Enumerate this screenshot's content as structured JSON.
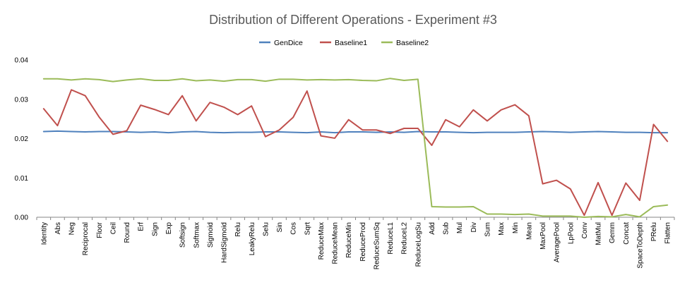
{
  "chart_data": {
    "type": "line",
    "title": "Distribution of Different Operations - Experiment #3",
    "xlabel": "",
    "ylabel": "",
    "ylim": [
      0,
      0.04
    ],
    "yticks": [
      "0.00",
      "0.01",
      "0.02",
      "0.03",
      "0.04"
    ],
    "grid": false,
    "legend_position": "top",
    "categories": [
      "Identity",
      "Abs",
      "Neg",
      "Reciprocal",
      "Floor",
      "Ceil",
      "Round",
      "Erf",
      "Sign",
      "Exp",
      "Softsign",
      "Softmax",
      "Sigmoid",
      "HardSigmoid",
      "Relu",
      "LeakyRelu",
      "Selu",
      "Sin",
      "Cos",
      "Sqrt",
      "ReduceMax",
      "ReduceMean",
      "ReduceMin",
      "ReduceProd",
      "ReduceSumSq",
      "ReduceL1",
      "ReduceL2",
      "ReduceLogSu",
      "Add",
      "Sub",
      "Mul",
      "Div",
      "Sum",
      "Max",
      "Min",
      "Mean",
      "MaxPool",
      "AveragePool",
      "LpPool",
      "Conv",
      "MatMul",
      "Gemm",
      "Concat",
      "SpaceToDepth",
      "PRelu",
      "Flatten"
    ],
    "series": [
      {
        "name": "GenDice",
        "color": "#4F81BD",
        "values": [
          0.0218,
          0.0219,
          0.0218,
          0.0217,
          0.0218,
          0.0218,
          0.0217,
          0.0216,
          0.0217,
          0.0215,
          0.0217,
          0.0218,
          0.0216,
          0.0215,
          0.0216,
          0.0216,
          0.0217,
          0.0217,
          0.0216,
          0.0215,
          0.0217,
          0.0215,
          0.0217,
          0.0217,
          0.0216,
          0.0217,
          0.0216,
          0.0218,
          0.0217,
          0.0217,
          0.0216,
          0.0215,
          0.0216,
          0.0216,
          0.0216,
          0.0217,
          0.0218,
          0.0217,
          0.0216,
          0.0217,
          0.0218,
          0.0217,
          0.0216,
          0.0216,
          0.0215,
          0.0215
        ]
      },
      {
        "name": "Baseline1",
        "color": "#C0504D",
        "values": [
          0.0276,
          0.0233,
          0.0324,
          0.0309,
          0.0255,
          0.0211,
          0.022,
          0.0285,
          0.0274,
          0.0261,
          0.0309,
          0.0245,
          0.0292,
          0.028,
          0.0261,
          0.0283,
          0.0205,
          0.0222,
          0.0254,
          0.0321,
          0.0207,
          0.0201,
          0.0248,
          0.0222,
          0.0222,
          0.0213,
          0.0226,
          0.0226,
          0.0183,
          0.0248,
          0.023,
          0.0273,
          0.0245,
          0.0273,
          0.0286,
          0.0258,
          0.0085,
          0.0094,
          0.0072,
          0.0005,
          0.0088,
          0.0005,
          0.0087,
          0.0043,
          0.0236,
          0.0193
        ]
      },
      {
        "name": "Baseline2",
        "color": "#9BBB59",
        "values": [
          0.0352,
          0.0352,
          0.0349,
          0.0352,
          0.035,
          0.0345,
          0.0349,
          0.0352,
          0.0348,
          0.0348,
          0.0352,
          0.0347,
          0.0349,
          0.0346,
          0.035,
          0.035,
          0.0346,
          0.0351,
          0.0351,
          0.0349,
          0.035,
          0.0349,
          0.035,
          0.0348,
          0.0347,
          0.0353,
          0.0348,
          0.0351,
          0.0027,
          0.0026,
          0.0026,
          0.0027,
          0.0008,
          0.0008,
          0.0007,
          0.0008,
          0.0003,
          0.0003,
          0.0003,
          0.0,
          0.0002,
          0.0001,
          0.0007,
          0.0001,
          0.0027,
          0.0031
        ]
      }
    ]
  }
}
